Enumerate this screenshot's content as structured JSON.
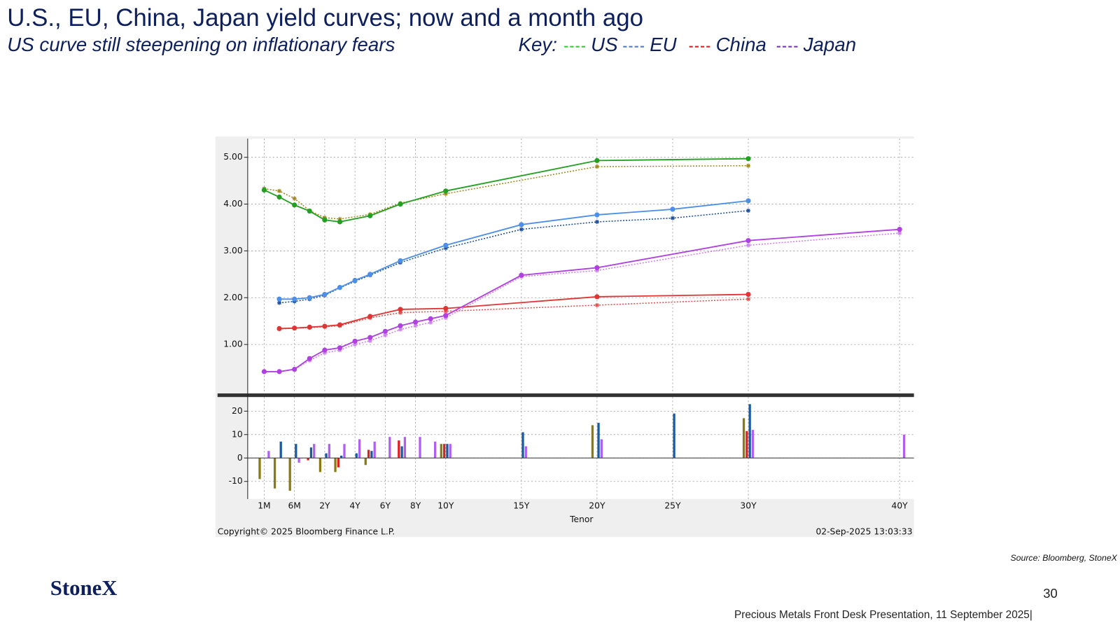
{
  "header": {
    "title": "U.S., EU, China, Japan yield curves; now and a month ago",
    "subtitle": "US curve still steepening on inflationary fears"
  },
  "key": {
    "label": "Key:",
    "entries": [
      {
        "name": "US",
        "color": "#33cc33"
      },
      {
        "name": "EU",
        "color": "#4a7fd4"
      },
      {
        "name": "China",
        "color": "#e02020"
      },
      {
        "name": "Japan",
        "color": "#7a3ab8"
      }
    ]
  },
  "chart_data": [
    {
      "type": "line",
      "ylim": [
        0,
        5.4
      ],
      "yticks": [
        {
          "value": 1,
          "label": "1.00"
        },
        {
          "value": 2,
          "label": "2.00"
        },
        {
          "value": 3,
          "label": "3.00"
        },
        {
          "value": 4,
          "label": "4.00"
        },
        {
          "value": 5,
          "label": "5.00"
        }
      ],
      "grid": true,
      "connect_gaps": true,
      "series": [
        {
          "color": "#a08a1e",
          "dash": true,
          "marker": "star",
          "values": [
            4.33,
            4.28,
            4.12,
            3.86,
            3.71,
            3.68,
            null,
            3.78,
            null,
            4.02,
            null,
            null,
            4.22,
            null,
            4.8,
            null,
            4.82,
            null
          ]
        },
        {
          "color": "#1f4f9a",
          "dash": true,
          "marker": "star",
          "values": [
            null,
            1.89,
            1.92,
            1.97,
            2.05,
            2.21,
            2.35,
            2.48,
            null,
            2.75,
            null,
            null,
            3.06,
            3.46,
            3.62,
            3.7,
            3.86,
            null
          ]
        },
        {
          "color": "#e05050",
          "dash": true,
          "marker": "star",
          "values": [
            null,
            1.33,
            1.35,
            1.36,
            1.38,
            1.4,
            null,
            1.57,
            null,
            1.68,
            null,
            null,
            1.71,
            null,
            1.84,
            null,
            1.97,
            null
          ]
        },
        {
          "color": "#d080f0",
          "dash": true,
          "marker": "star",
          "values": [
            0.42,
            0.42,
            0.47,
            0.66,
            0.82,
            0.88,
            1.0,
            1.08,
            1.2,
            1.32,
            1.4,
            1.47,
            1.57,
            2.45,
            2.58,
            null,
            3.12,
            3.38
          ]
        },
        {
          "color": "#22a022",
          "dash": false,
          "marker": "circle",
          "values": [
            4.3,
            4.15,
            3.98,
            3.85,
            3.66,
            3.62,
            null,
            3.75,
            null,
            4.0,
            null,
            null,
            4.28,
            null,
            4.93,
            null,
            4.97,
            null
          ]
        },
        {
          "color": "#4c8fe8",
          "dash": false,
          "marker": "circle",
          "values": [
            null,
            1.97,
            1.97,
            2.0,
            2.07,
            2.22,
            2.37,
            2.5,
            null,
            2.79,
            null,
            null,
            3.12,
            3.56,
            3.77,
            3.89,
            4.07,
            null
          ]
        },
        {
          "color": "#e03535",
          "dash": false,
          "marker": "circle",
          "values": [
            null,
            1.34,
            1.35,
            1.37,
            1.39,
            1.42,
            null,
            1.6,
            null,
            1.75,
            null,
            null,
            1.77,
            null,
            2.02,
            null,
            2.07,
            null
          ]
        },
        {
          "color": "#b040e0",
          "dash": false,
          "marker": "circle",
          "values": [
            0.42,
            0.42,
            0.47,
            0.7,
            0.88,
            0.93,
            1.07,
            1.15,
            1.28,
            1.4,
            1.48,
            1.55,
            1.62,
            2.48,
            2.64,
            null,
            3.22,
            3.46
          ]
        }
      ]
    },
    {
      "type": "bar",
      "ylim": [
        -17.5,
        24.5
      ],
      "yticks": [
        -10,
        0,
        10,
        20
      ],
      "grid": true,
      "xlabel": "Tenor",
      "categories": [
        "1M",
        null,
        "6M",
        null,
        "2Y",
        null,
        "4Y",
        null,
        "6Y",
        null,
        "8Y",
        null,
        "10Y",
        "15Y",
        "20Y",
        "25Y",
        "30Y",
        "40Y"
      ],
      "series": [
        {
          "color": "#8a7a14",
          "values": [
            -9,
            -13,
            -14,
            null,
            -6,
            -6,
            null,
            -3,
            null,
            null,
            null,
            null,
            6,
            null,
            14,
            null,
            17,
            null
          ]
        },
        {
          "color": "#e02020",
          "values": [
            null,
            null,
            null,
            -1,
            null,
            -4,
            null,
            3.5,
            null,
            7.5,
            null,
            null,
            6,
            null,
            null,
            null,
            11.5,
            null
          ]
        },
        {
          "color": "#1a5aa0",
          "values": [
            null,
            7,
            6,
            4.5,
            2,
            1,
            2,
            3,
            null,
            5,
            null,
            null,
            6,
            11,
            15,
            19,
            23,
            null
          ]
        },
        {
          "color": "#b060f0",
          "values": [
            3,
            null,
            -2,
            6,
            6,
            6,
            8,
            7,
            9,
            9,
            9,
            7,
            6,
            5,
            8,
            null,
            12,
            10
          ]
        }
      ]
    }
  ],
  "chart_footer": {
    "copyright": "Copyright© 2025 Bloomberg Finance L.P.",
    "timestamp": "02-Sep-2025 13:03:33"
  },
  "source": "Source: Bloomberg, StoneX",
  "logo": "StoneX",
  "page_number": "30",
  "footer": "Precious Metals Front Desk Presentation, 11 September 2025|"
}
